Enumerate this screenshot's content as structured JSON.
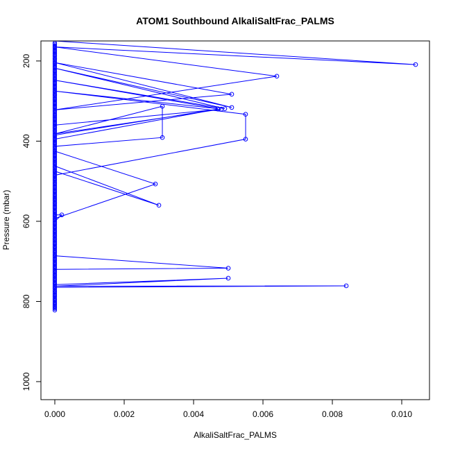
{
  "chart_data": {
    "type": "line",
    "title": "ATOM1 Southbound AlkaliSaltFrac_PALMS",
    "xlabel": "AlkaliSaltFrac_PALMS",
    "ylabel": "Pressure (mbar)",
    "xlim": [
      -0.0004,
      0.0108
    ],
    "ylim": [
      1045,
      150
    ],
    "y_inverted": true,
    "grid": false,
    "series_color": "#0000ff",
    "x_ticks": [
      {
        "value": 0.0,
        "label": "0.000"
      },
      {
        "value": 0.002,
        "label": "0.002"
      },
      {
        "value": 0.004,
        "label": "0.004"
      },
      {
        "value": 0.006,
        "label": "0.006"
      },
      {
        "value": 0.008,
        "label": "0.008"
      },
      {
        "value": 0.01,
        "label": "0.010"
      }
    ],
    "y_ticks": [
      {
        "value": 200,
        "label": "200"
      },
      {
        "value": 400,
        "label": "400"
      },
      {
        "value": 600,
        "label": "600"
      },
      {
        "value": 800,
        "label": "800"
      },
      {
        "value": 1000,
        "label": "1000"
      }
    ],
    "series": [
      {
        "points": [
          {
            "x": 0.0,
            "p": 150
          },
          {
            "x": 0.0104,
            "p": 209
          },
          {
            "x": 0.0,
            "p": 165
          },
          {
            "x": 0.0064,
            "p": 238
          },
          {
            "x": 0.0,
            "p": 322
          },
          {
            "x": 0.0051,
            "p": 283
          },
          {
            "x": 0.0,
            "p": 204
          },
          {
            "x": 0.0051,
            "p": 316
          },
          {
            "x": 0.0,
            "p": 218
          },
          {
            "x": 0.0049,
            "p": 319
          },
          {
            "x": 0.0,
            "p": 248
          },
          {
            "x": 0.0047,
            "p": 319
          },
          {
            "x": 0.0,
            "p": 275
          },
          {
            "x": 0.0055,
            "p": 333
          },
          {
            "x": 0.0055,
            "p": 395
          },
          {
            "x": 0.0,
            "p": 485
          },
          {
            "x": 0.0,
            "p": 360
          },
          {
            "x": 0.0048,
            "p": 320
          },
          {
            "x": 0.0,
            "p": 382
          },
          {
            "x": 0.0031,
            "p": 313
          },
          {
            "x": 0.0031,
            "p": 391
          },
          {
            "x": 0.0,
            "p": 413
          },
          {
            "x": 0.0,
            "p": 385
          },
          {
            "x": 0.0047,
            "p": 320
          },
          {
            "x": 0.0,
            "p": 395
          },
          {
            "x": 0.0,
            "p": 425
          },
          {
            "x": 0.0029,
            "p": 507
          },
          {
            "x": 0.0,
            "p": 593
          },
          {
            "x": 0.0,
            "p": 462
          },
          {
            "x": 0.003,
            "p": 560
          },
          {
            "x": 0.0,
            "p": 475
          },
          {
            "x": 0.0,
            "p": 584
          },
          {
            "x": 0.0002,
            "p": 584
          },
          {
            "x": 0.0,
            "p": 600
          },
          {
            "x": 0.0,
            "p": 686
          },
          {
            "x": 0.005,
            "p": 717
          },
          {
            "x": 0.0,
            "p": 720
          },
          {
            "x": 0.0,
            "p": 758
          },
          {
            "x": 0.005,
            "p": 742
          },
          {
            "x": 0.0,
            "p": 762
          },
          {
            "x": 0.0084,
            "p": 761
          },
          {
            "x": 0.0,
            "p": 765
          },
          {
            "x": 0.0,
            "p": 790
          },
          {
            "x": 0.0,
            "p": 805
          },
          {
            "x": 0.0,
            "p": 822
          }
        ]
      }
    ],
    "baseline_markers": {
      "x": 0.0,
      "pressures": [
        155,
        158,
        162,
        165,
        168,
        172,
        175,
        178,
        182,
        185,
        188,
        192,
        195,
        198,
        202,
        205,
        208,
        212,
        215,
        218,
        222,
        225,
        228,
        232,
        235,
        238,
        242,
        245,
        248,
        252,
        255,
        258,
        262,
        265,
        268,
        272,
        275,
        278,
        282,
        285,
        288,
        292,
        295,
        298,
        302,
        305,
        308,
        312,
        315,
        318,
        322,
        325,
        328,
        332,
        335,
        338,
        342,
        345,
        348,
        352,
        355,
        358,
        362,
        365,
        368,
        372,
        375,
        378,
        382,
        385,
        388,
        392,
        395,
        398,
        402,
        405,
        408,
        412,
        415,
        418,
        422,
        425,
        428,
        432,
        435,
        438,
        442,
        445,
        448,
        452,
        455,
        458,
        462,
        465,
        468,
        472,
        475,
        478,
        482,
        485,
        488,
        492,
        495,
        498,
        502,
        505,
        508,
        512,
        515,
        518,
        522,
        525,
        528,
        532,
        535,
        538,
        542,
        545,
        548,
        552,
        555,
        558,
        562,
        565,
        568,
        572,
        575,
        578,
        582,
        585,
        588,
        592,
        595,
        598,
        602,
        605,
        608,
        612,
        615,
        618,
        622,
        625,
        628,
        632,
        635,
        638,
        642,
        645,
        648,
        652,
        655,
        658,
        662,
        665,
        668,
        672,
        675,
        678,
        682,
        685,
        688,
        692,
        695,
        698,
        702,
        705,
        708,
        712,
        715,
        718,
        722,
        725,
        728,
        732,
        735,
        738,
        742,
        745,
        748,
        752,
        755,
        758,
        762,
        765,
        768,
        772,
        775,
        778,
        782,
        785,
        788,
        792,
        795,
        798,
        802,
        805,
        808,
        812,
        815,
        818,
        822
      ]
    }
  }
}
